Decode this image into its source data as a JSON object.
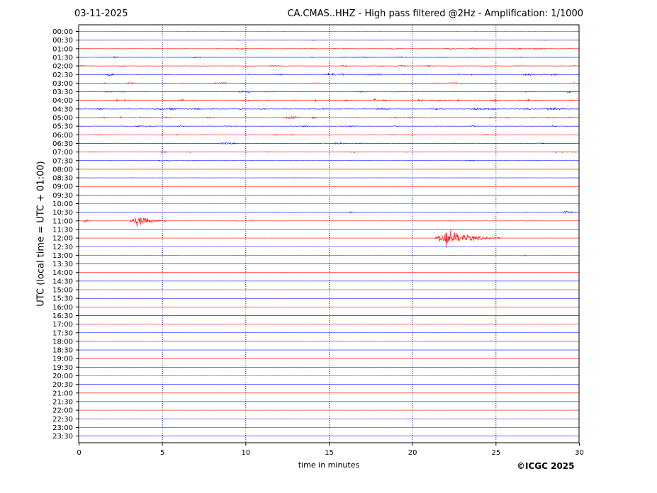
{
  "header": {
    "date": "03-11-2025",
    "title": "CA.CMAS..HHZ - High pass filtered @2Hz - Amplification: 1/1000"
  },
  "footer": {
    "copyright": "©ICGC 2025"
  },
  "chart_data": {
    "type": "line",
    "title": "CA.CMAS..HHZ - High pass filtered @2Hz - Amplification: 1/1000",
    "xlabel": "time in minutes",
    "ylabel": "UTC (local time = UTC + 01:00)",
    "xlim": [
      0,
      30
    ],
    "x_ticks": [
      "0",
      "5",
      "10",
      "15",
      "20",
      "25",
      "30"
    ],
    "grid": "vertical dotted lines at 5-minute ticks",
    "trace_colors": [
      "#ff0000",
      "#0000ff"
    ],
    "rows": [
      "00:00",
      "00:30",
      "01:00",
      "01:30",
      "02:00",
      "02:30",
      "03:00",
      "03:30",
      "04:00",
      "04:30",
      "05:00",
      "05:30",
      "06:00",
      "06:30",
      "07:00",
      "07:30",
      "08:00",
      "08:30",
      "09:00",
      "09:30",
      "10:00",
      "10:30",
      "11:00",
      "11:30",
      "12:00",
      "12:30",
      "13:00",
      "13:30",
      "14:00",
      "14:30",
      "15:00",
      "15:30",
      "16:00",
      "16:30",
      "17:00",
      "17:30",
      "18:00",
      "18:30",
      "19:00",
      "19:30",
      "20:00",
      "20:30",
      "21:00",
      "21:30",
      "22:00",
      "22:30",
      "23:00",
      "23:30"
    ],
    "noise_level": [
      0.1,
      0.4,
      0.6,
      0.6,
      0.6,
      0.9,
      0.6,
      0.6,
      1.0,
      0.9,
      0.9,
      0.6,
      0.5,
      0.6,
      0.6,
      0.3,
      0.05,
      0.2,
      0.05,
      0.05,
      0.05,
      0.3,
      0.3,
      0.05,
      0.15,
      0.05,
      0.1,
      0.05,
      0.1,
      0.1,
      0.05,
      0.05,
      0.05,
      0.05,
      0.05,
      0.05,
      0.05,
      0.05,
      0.05,
      0.05,
      0.05,
      0.05,
      0.05,
      0.05,
      0.05,
      0.05,
      0.05,
      0.05
    ],
    "events": [
      {
        "row": "10:30",
        "minute": 16.3,
        "amplitude": 0.3,
        "duration": 0.4
      },
      {
        "row": "10:30",
        "minute": 29.2,
        "amplitude": 0.5,
        "duration": 0.8
      },
      {
        "row": "11:00",
        "minute": 3.5,
        "amplitude": 1.6,
        "duration": 1.8
      },
      {
        "row": "11:00",
        "minute": 0.4,
        "amplitude": 0.4,
        "duration": 0.4
      },
      {
        "row": "11:00",
        "minute": 10.4,
        "amplitude": 0.2,
        "duration": 0.3
      },
      {
        "row": "12:00",
        "minute": 22.1,
        "amplitude": 2.6,
        "duration": 3.2
      },
      {
        "row": "13:00",
        "minute": 26.8,
        "amplitude": 0.2,
        "duration": 0.3
      },
      {
        "row": "14:00",
        "minute": 12.1,
        "amplitude": 0.3,
        "duration": 0.4
      },
      {
        "row": "08:30",
        "minute": 12.9,
        "amplitude": 0.2,
        "duration": 0.3
      },
      {
        "row": "07:30",
        "minute": 4.8,
        "amplitude": 0.3,
        "duration": 0.4
      }
    ]
  }
}
